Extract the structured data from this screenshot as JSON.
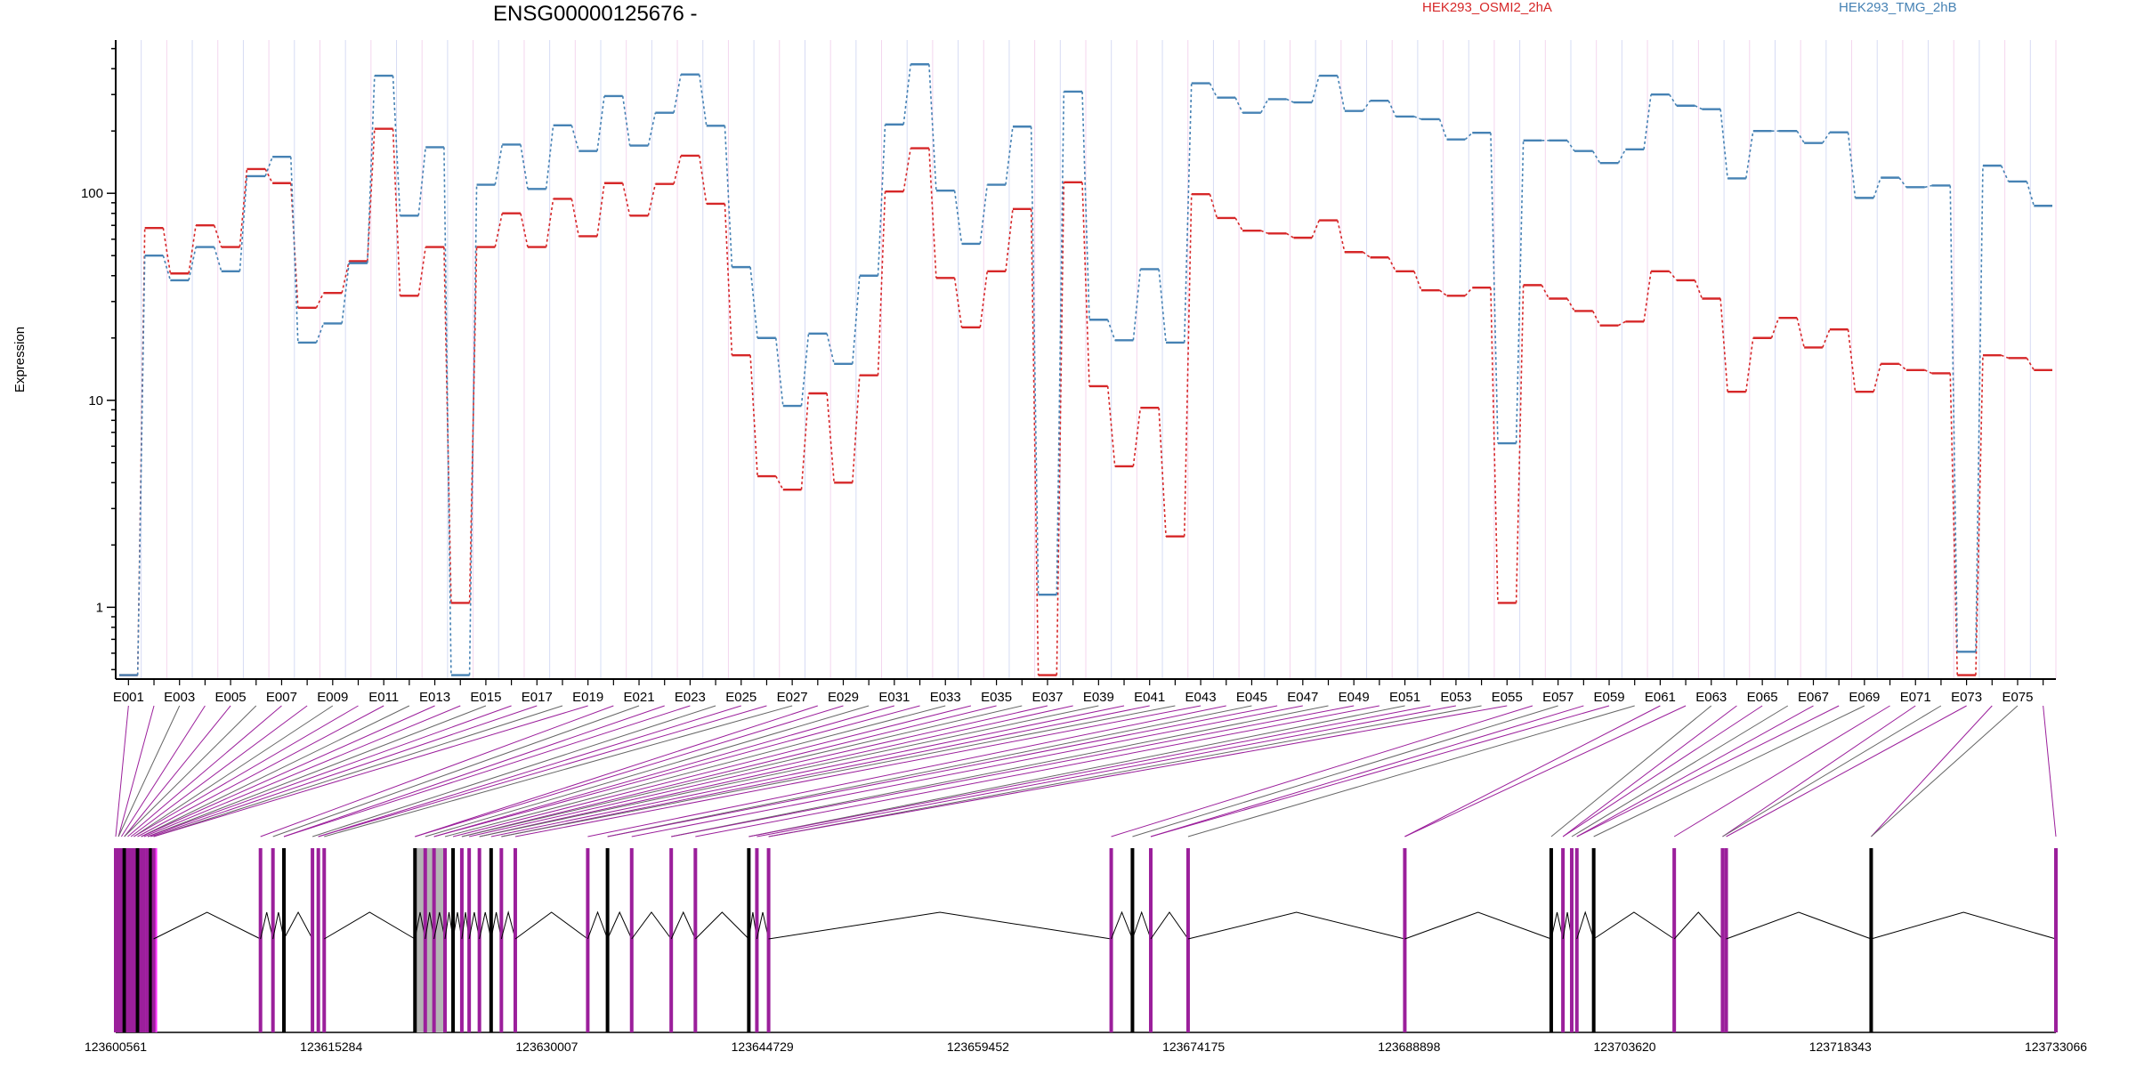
{
  "chart_data": {
    "type": "line",
    "title": "ENSG00000125676 -",
    "ylabel": "Expression",
    "yscale": "log",
    "ylim": [
      0.45,
      550
    ],
    "yticks": [
      1,
      10,
      100
    ],
    "ytick_labels": [
      "1",
      "10",
      "100"
    ],
    "exon_labels_shown": [
      "E001",
      "E003",
      "E005",
      "E007",
      "E009",
      "E011",
      "E013",
      "E015",
      "E017",
      "E019",
      "E021",
      "E023",
      "E025",
      "E027",
      "E029",
      "E031",
      "E033",
      "E035",
      "E037",
      "E039",
      "E041",
      "E043",
      "E045",
      "E047",
      "E049",
      "E051",
      "E053",
      "E055",
      "E057",
      "E059",
      "E061",
      "E063",
      "E065",
      "E067",
      "E069",
      "E071",
      "E073",
      "E075"
    ],
    "series": [
      {
        "name": "HEK293_OSMI2_2hA",
        "color": "#d62728",
        "values": [
          0.47,
          68,
          41,
          70,
          55,
          131,
          112,
          28,
          33,
          47,
          205,
          32,
          55,
          1.05,
          55,
          80,
          55,
          94,
          62,
          112,
          78,
          111,
          152,
          89,
          16.5,
          4.3,
          3.7,
          10.8,
          4,
          13.2,
          102,
          165,
          39,
          22.5,
          42,
          84,
          0.47,
          113,
          11.7,
          4.8,
          9.2,
          2.2,
          99,
          76,
          66,
          64,
          61,
          74,
          52,
          49,
          42,
          34,
          32,
          35,
          1.05,
          36,
          31,
          27,
          23,
          24,
          42,
          38,
          31,
          11,
          20,
          25,
          18,
          22,
          11,
          15,
          14,
          13.5,
          0.47,
          16.5,
          16,
          14
        ]
      },
      {
        "name": "HEK293_TMG_2hB",
        "color": "#4682b4",
        "values": [
          0.47,
          50,
          38,
          55,
          42,
          121,
          150,
          19,
          23.5,
          46,
          370,
          78,
          167,
          0.47,
          110,
          172,
          105,
          213,
          160,
          295,
          170,
          245,
          375,
          212,
          44,
          20,
          9.4,
          21,
          15,
          40,
          215,
          420,
          103,
          57,
          110,
          210,
          1.15,
          310,
          24.5,
          19.5,
          43,
          19,
          340,
          290,
          245,
          285,
          275,
          370,
          250,
          280,
          235,
          228,
          182,
          196,
          6.2,
          180,
          180,
          160,
          140,
          163,
          300,
          265,
          255,
          118,
          200,
          200,
          175,
          197,
          95,
          119,
          107,
          109,
          0.61,
          136,
          114,
          87
        ]
      }
    ],
    "genomic_axis_labels": [
      "123600561",
      "123615284",
      "123630007",
      "123644729",
      "123659452",
      "123674175",
      "123688898",
      "123703620",
      "123718343",
      "123733066"
    ],
    "gene_model": {
      "exon_positions": [
        123600561,
        123600750,
        123600950,
        123601150,
        123601380,
        123601600,
        123601800,
        123602050,
        123602300,
        123602500,
        123602750,
        123602950,
        123603150,
        123610450,
        123611300,
        123612050,
        123614000,
        123614400,
        123614800,
        123621000,
        123621700,
        123622300,
        123623050,
        123623600,
        123624200,
        123624700,
        123625400,
        123626200,
        123626900,
        123627850,
        123632800,
        123634150,
        123635800,
        123638500,
        123640150,
        123643800,
        123644350,
        123645150,
        123668550,
        123670000,
        123671250,
        123673800,
        123688600,
        123698600,
        123699400,
        123700000,
        123700350,
        123701500,
        123707000,
        123710300,
        123710550,
        123720450,
        123733066
      ],
      "highlight_color": "#9b1f9b",
      "bright_color": "#ff33ff",
      "gray_color": "#b4b4b4"
    },
    "grid": true
  }
}
